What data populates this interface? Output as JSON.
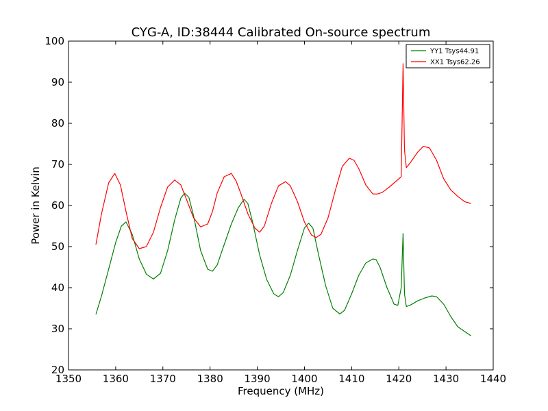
{
  "chart_data": {
    "type": "line",
    "title": "CYG-A, ID:38444 Calibrated On-source spectrum",
    "xlabel": "Frequency (MHz)",
    "ylabel": "Power in Kelvin",
    "xlim": [
      1350,
      1440
    ],
    "ylim": [
      20,
      100
    ],
    "xticks": [
      1350,
      1360,
      1370,
      1380,
      1390,
      1400,
      1410,
      1420,
      1430,
      1440
    ],
    "yticks": [
      20,
      30,
      40,
      50,
      60,
      70,
      80,
      90,
      100
    ],
    "grid": false,
    "legend_position": "top-right",
    "series": [
      {
        "name": "YY1 Tsys44.91",
        "color": "#008000",
        "x": [
          1355.8,
          1357.0,
          1358.5,
          1360.0,
          1361.2,
          1362.2,
          1363.5,
          1365.0,
          1366.5,
          1368.0,
          1369.5,
          1371.0,
          1372.5,
          1373.8,
          1374.6,
          1375.5,
          1376.5,
          1378.0,
          1379.5,
          1380.5,
          1381.5,
          1383.0,
          1384.5,
          1386.0,
          1387.2,
          1388.0,
          1389.0,
          1390.5,
          1392.0,
          1393.5,
          1394.5,
          1395.5,
          1397.0,
          1398.5,
          1400.0,
          1400.9,
          1401.8,
          1403.0,
          1404.5,
          1406.0,
          1407.5,
          1408.5,
          1410.0,
          1411.5,
          1413.0,
          1414.5,
          1415.2,
          1416.0,
          1417.5,
          1419.0,
          1419.8,
          1420.5,
          1420.9,
          1421.2,
          1421.6,
          1422.5,
          1424.0,
          1425.5,
          1427.0,
          1428.0,
          1429.5,
          1431.0,
          1432.5,
          1434.0,
          1435.3
        ],
        "y": [
          33.5,
          38.0,
          44.5,
          51.0,
          55.0,
          56.0,
          53.0,
          47.0,
          43.3,
          42.1,
          43.5,
          49.0,
          56.5,
          61.8,
          63.0,
          62.0,
          57.5,
          49.0,
          44.5,
          44.0,
          45.5,
          50.5,
          55.5,
          59.5,
          61.5,
          60.5,
          56.0,
          48.0,
          42.0,
          38.5,
          37.8,
          38.8,
          43.0,
          49.0,
          54.5,
          55.7,
          54.5,
          48.0,
          40.5,
          35.0,
          33.6,
          34.5,
          38.5,
          43.0,
          46.0,
          47.0,
          46.8,
          45.0,
          40.0,
          36.0,
          35.7,
          40.0,
          53.2,
          38.5,
          35.4,
          35.8,
          36.8,
          37.5,
          38.0,
          37.8,
          36.0,
          33.0,
          30.5,
          29.3,
          28.3
        ]
      },
      {
        "name": "XX1 Tsys62.26",
        "color": "#ff0000",
        "x": [
          1355.8,
          1357.0,
          1358.5,
          1359.8,
          1361.0,
          1362.2,
          1363.5,
          1365.0,
          1366.5,
          1368.0,
          1369.5,
          1371.0,
          1372.5,
          1373.8,
          1375.0,
          1376.5,
          1378.0,
          1379.5,
          1380.5,
          1381.5,
          1383.0,
          1384.5,
          1385.5,
          1386.5,
          1388.0,
          1389.5,
          1390.5,
          1391.5,
          1393.0,
          1394.5,
          1396.0,
          1397.0,
          1398.5,
          1400.0,
          1401.5,
          1402.5,
          1403.5,
          1405.0,
          1406.5,
          1408.0,
          1409.5,
          1410.5,
          1411.5,
          1413.0,
          1414.5,
          1415.5,
          1416.5,
          1418.0,
          1419.5,
          1420.5,
          1420.9,
          1421.2,
          1421.6,
          1422.5,
          1424.0,
          1425.2,
          1426.5,
          1428.0,
          1429.5,
          1431.0,
          1432.5,
          1434.0,
          1435.3
        ],
        "y": [
          50.5,
          58.0,
          65.5,
          67.8,
          65.0,
          58.5,
          52.0,
          49.5,
          50.0,
          53.5,
          59.5,
          64.5,
          66.2,
          65.0,
          61.5,
          57.0,
          54.8,
          55.5,
          58.5,
          63.0,
          67.0,
          67.8,
          66.0,
          63.0,
          58.0,
          54.5,
          53.5,
          55.0,
          60.5,
          64.8,
          65.8,
          64.8,
          61.0,
          56.0,
          52.8,
          52.2,
          53.0,
          57.0,
          63.5,
          69.5,
          71.5,
          71.0,
          69.0,
          65.0,
          62.8,
          62.8,
          63.2,
          64.5,
          66.0,
          67.0,
          94.5,
          73.5,
          69.2,
          70.5,
          73.0,
          74.4,
          74.0,
          71.0,
          66.5,
          63.8,
          62.2,
          60.9,
          60.5
        ]
      }
    ]
  }
}
